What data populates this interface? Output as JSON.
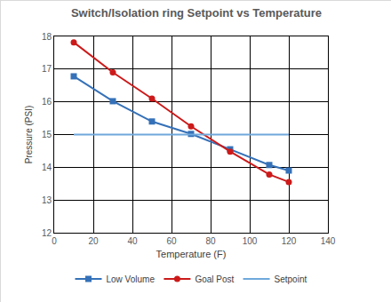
{
  "chart_data": {
    "type": "line",
    "title": "Switch/Isolation ring Setpoint vs Temperature",
    "x_label": "Temperature (F)",
    "y_label": "Pressure (PSI)",
    "x": [
      10,
      30,
      50,
      70,
      90,
      110,
      120
    ],
    "series": [
      {
        "name": "Low Volume",
        "color": "#3571b8",
        "marker": "square",
        "line_style": "solid",
        "values": [
          16.78,
          16.02,
          15.4,
          15.02,
          14.55,
          14.07,
          13.9
        ]
      },
      {
        "name": "Goal Post",
        "color": "#cc1a1a",
        "marker": "circle",
        "line_style": "solid",
        "values": [
          17.82,
          16.9,
          16.1,
          15.25,
          14.48,
          13.78,
          13.55
        ]
      },
      {
        "name": "Setpoint",
        "color": "#6fa8dc",
        "marker": "none",
        "line_style": "solid",
        "values": [
          15,
          15,
          15,
          15,
          15,
          15,
          15
        ]
      }
    ],
    "xlim": [
      0,
      140
    ],
    "xticks": [
      0,
      20,
      40,
      60,
      80,
      100,
      120,
      140
    ],
    "ylim": [
      12,
      18
    ],
    "yticks": [
      12,
      13,
      14,
      15,
      16,
      17,
      18
    ],
    "grid": true,
    "legend": "bottom"
  }
}
